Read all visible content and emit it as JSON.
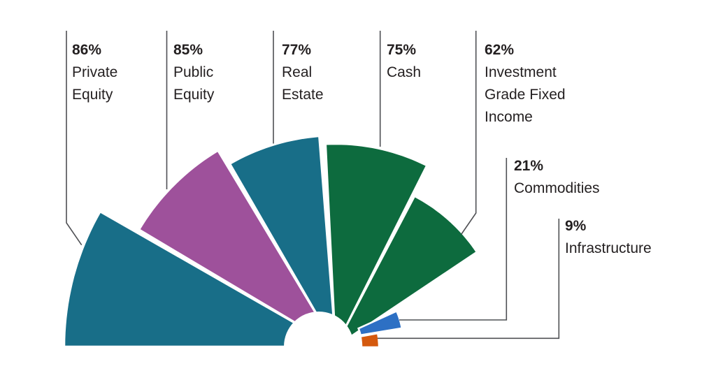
{
  "chart_data": {
    "type": "pie",
    "subtype": "half-fan-rose",
    "title": "",
    "unit": "%",
    "total_span_degrees": 180,
    "series": [
      {
        "label": "Private Equity",
        "value": 86,
        "color": "#186e88"
      },
      {
        "label": "Public Equity",
        "value": 85,
        "color": "#9e519b"
      },
      {
        "label": "Real Estate",
        "value": 77,
        "color": "#186e88"
      },
      {
        "label": "Cash",
        "value": 75,
        "color": "#0d6b3e"
      },
      {
        "label": "Investment Grade Fixed Income",
        "value": 62,
        "color": "#0d6b3e"
      },
      {
        "label": "Commodities",
        "value": 21,
        "color": "#2d70c4"
      },
      {
        "label": "Infrastructure",
        "value": 9,
        "color": "#d4590e"
      }
    ],
    "annotations": [
      {
        "pct": "86%",
        "lines": [
          "Private",
          "Equity"
        ]
      },
      {
        "pct": "85%",
        "lines": [
          "Public",
          "Equity"
        ]
      },
      {
        "pct": "77%",
        "lines": [
          "Real",
          "Estate"
        ]
      },
      {
        "pct": "75%",
        "lines": [
          "Cash"
        ]
      },
      {
        "pct": "62%",
        "lines": [
          "Investment",
          "Grade Fixed",
          "Income"
        ]
      },
      {
        "pct": "21%",
        "lines": [
          "Commodities"
        ]
      },
      {
        "pct": "9%",
        "lines": [
          "Infrastructure"
        ]
      }
    ],
    "colors": {
      "background": "#ffffff",
      "callout_line": "#4f5054",
      "label_text": "#231f20",
      "wedge_separator": "#ffffff"
    },
    "legend_position": "none",
    "grid": false
  }
}
